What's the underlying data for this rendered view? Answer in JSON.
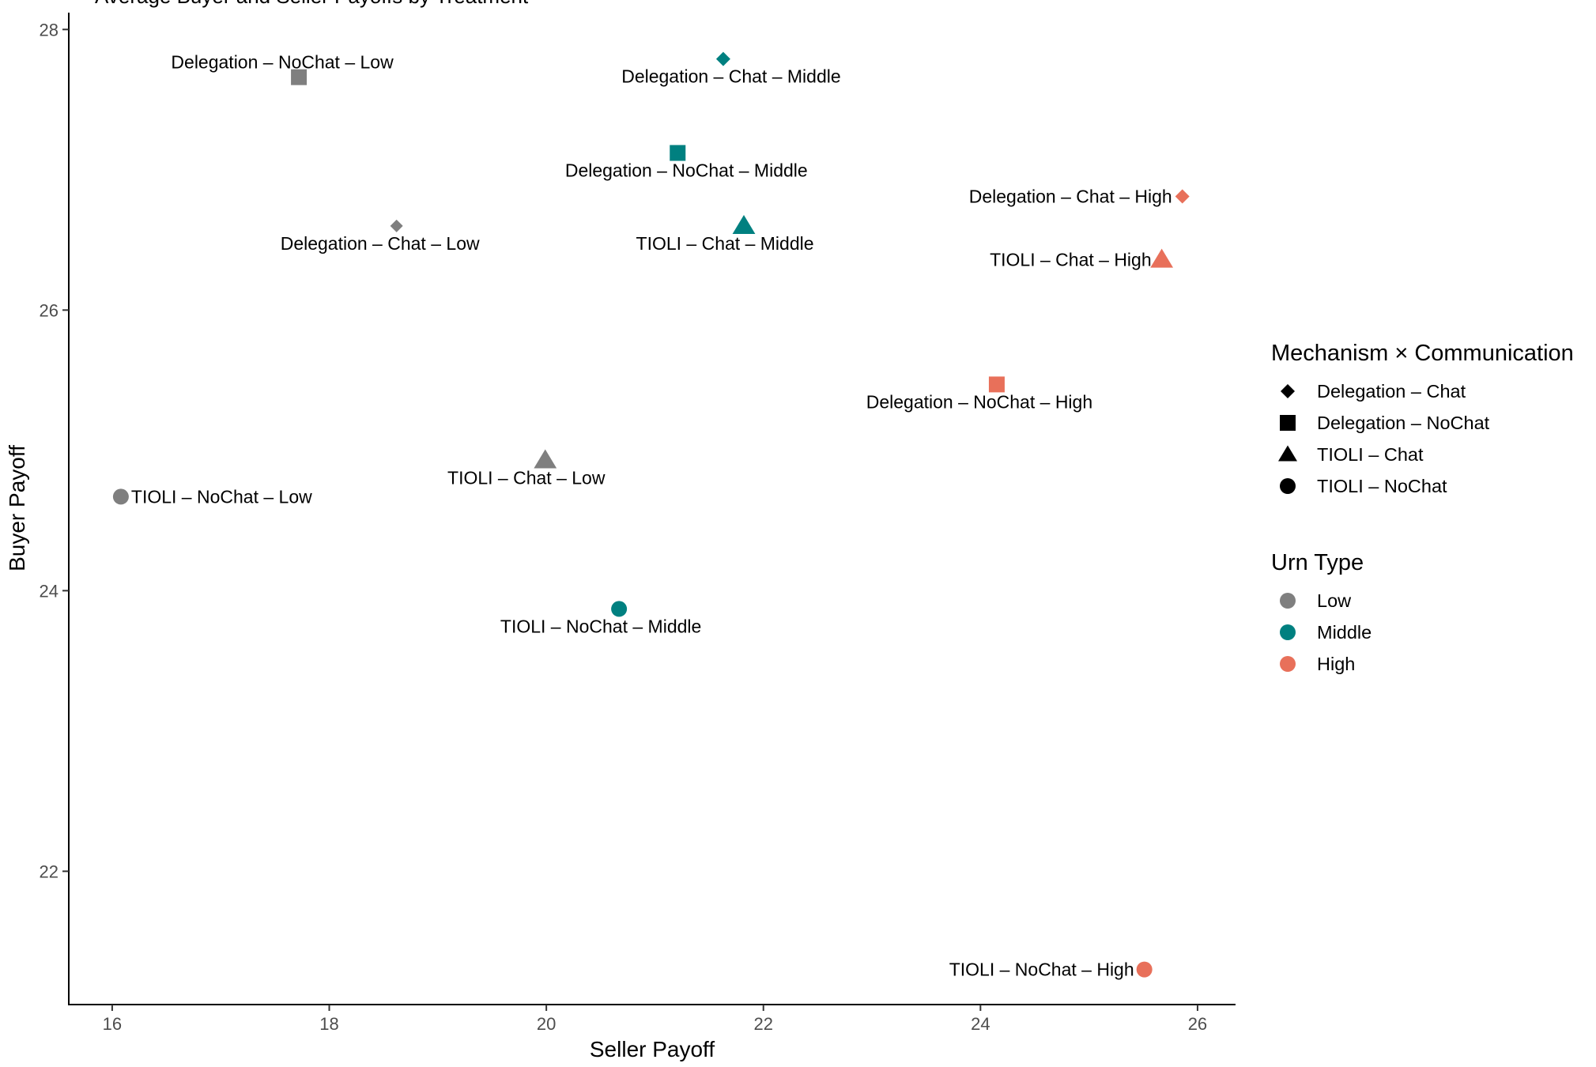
{
  "chart_data": {
    "type": "scatter",
    "title": "Average Buyer and Seller Payoffs by Treatment",
    "xlabel": "Seller Payoff",
    "ylabel": "Buyer Payoff",
    "xlim": [
      15.6,
      26.35
    ],
    "ylim": [
      21.05,
      28.12
    ],
    "x_ticks": [
      16,
      18,
      20,
      22,
      24,
      26
    ],
    "y_ticks": [
      22,
      24,
      26,
      28
    ],
    "colors": {
      "Low": "#7f7f7f",
      "Middle": "#008080",
      "High": "#e8705a"
    },
    "legend": {
      "shape_title": "Mechanism × Communication",
      "shape_entries": [
        {
          "label": "Delegation – Chat",
          "shape": "diamond"
        },
        {
          "label": "Delegation – NoChat",
          "shape": "square"
        },
        {
          "label": "TIOLI – Chat",
          "shape": "triangle"
        },
        {
          "label": "TIOLI – NoChat",
          "shape": "circle"
        }
      ],
      "color_title": "Urn Type",
      "color_entries": [
        {
          "label": "Low",
          "color": "#7f7f7f"
        },
        {
          "label": "Middle",
          "color": "#008080"
        },
        {
          "label": "High",
          "color": "#e8705a"
        }
      ],
      "placement": "right"
    },
    "points": [
      {
        "label": "Delegation – NoChat – Low",
        "x": 17.72,
        "y": 27.66,
        "shape": "square",
        "urn": "Low",
        "anchor": "end",
        "pos": "above"
      },
      {
        "label": "Delegation – Chat – Middle",
        "x": 21.63,
        "y": 27.79,
        "shape": "diamond",
        "urn": "Middle",
        "anchor": "middle",
        "pos": "below"
      },
      {
        "label": "Delegation – NoChat – Middle",
        "x": 21.21,
        "y": 27.12,
        "shape": "square",
        "urn": "Middle",
        "anchor": "middle",
        "pos": "below"
      },
      {
        "label": "Delegation – Chat – Low",
        "x": 18.62,
        "y": 26.6,
        "shape": "diamond",
        "urn": "Low",
        "anchor": "middle",
        "pos": "below"
      },
      {
        "label": "TIOLI – Chat – Middle",
        "x": 21.82,
        "y": 26.6,
        "shape": "triangle",
        "urn": "Middle",
        "anchor": "end",
        "pos": "below"
      },
      {
        "label": "Delegation – Chat – High",
        "x": 25.86,
        "y": 26.81,
        "shape": "diamond",
        "urn": "High",
        "anchor": "end",
        "pos": "left"
      },
      {
        "label": "TIOLI – Chat – High",
        "x": 25.67,
        "y": 26.36,
        "shape": "triangle",
        "urn": "High",
        "anchor": "end",
        "pos": "left"
      },
      {
        "label": "Delegation – NoChat – High",
        "x": 24.15,
        "y": 25.47,
        "shape": "square",
        "urn": "High",
        "anchor": "middle",
        "pos": "below"
      },
      {
        "label": "TIOLI – Chat – Low",
        "x": 19.99,
        "y": 24.93,
        "shape": "triangle",
        "urn": "Low",
        "anchor": "middle",
        "pos": "below"
      },
      {
        "label": "TIOLI – NoChat – Low",
        "x": 16.08,
        "y": 24.67,
        "shape": "circle",
        "urn": "Low",
        "anchor": "start",
        "pos": "right"
      },
      {
        "label": "TIOLI – NoChat – Middle",
        "x": 20.67,
        "y": 23.87,
        "shape": "circle",
        "urn": "Middle",
        "anchor": "middle",
        "pos": "below"
      },
      {
        "label": "TIOLI – NoChat – High",
        "x": 25.51,
        "y": 21.3,
        "shape": "circle",
        "urn": "High",
        "anchor": "end",
        "pos": "left"
      }
    ]
  }
}
